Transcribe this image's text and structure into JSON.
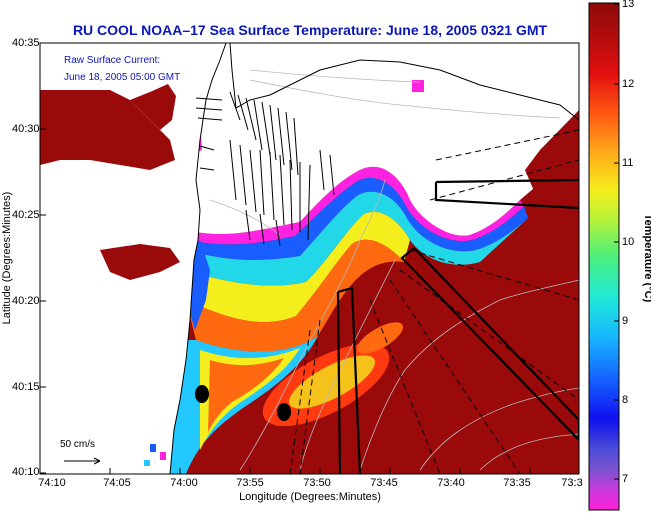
{
  "title": "RU COOL  NOAA–17  Sea Surface Temperature:  June 18, 2005 0321 GMT",
  "axes": {
    "xlabel": "Longitude (Degrees:Minutes)",
    "ylabel": "Latitude (Degrees:Minutes)",
    "xticks": [
      "74:10",
      "74:05",
      "74:00",
      "73:55",
      "73:50",
      "73:45",
      "73:40",
      "73:35",
      "73:3"
    ],
    "yticks": [
      "40:35",
      "40:30",
      "40:25",
      "40:20",
      "40:15",
      "40:10"
    ]
  },
  "colorbar": {
    "label": "Temperature (°C)",
    "ticks": [
      "13",
      "12",
      "11",
      "10",
      "9",
      "8",
      "7"
    ],
    "range": [
      6.3,
      13
    ]
  },
  "legend": {
    "line1": "Raw Surface Current:",
    "line2": "June 18, 2005 05:00 GMT",
    "scale_label": "50 cm/s"
  },
  "colors": {
    "title": "#0b16b8",
    "warm_water": "#9b0a0a",
    "land": "#ffffff",
    "frame": "#000000"
  }
}
